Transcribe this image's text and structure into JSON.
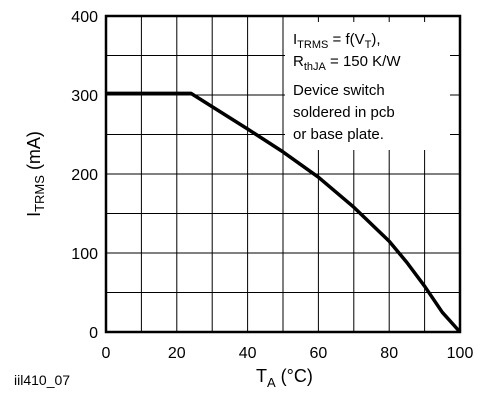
{
  "figure_id": "iil410_07",
  "chart_data": {
    "type": "line",
    "ylabel": {
      "main": "I",
      "sub": "TRMS",
      "unit": " (mA)"
    },
    "xlabel": {
      "main": "T",
      "sub": "A",
      "unit": " (°C)"
    },
    "xlim": [
      0,
      100
    ],
    "ylim": [
      0,
      400
    ],
    "x_ticks": [
      0,
      20,
      40,
      60,
      80,
      100
    ],
    "y_ticks": [
      0,
      100,
      200,
      300,
      400
    ],
    "x_grid": [
      0,
      10,
      20,
      30,
      40,
      50,
      60,
      70,
      80,
      90,
      100
    ],
    "y_grid": [
      0,
      50,
      100,
      150,
      200,
      250,
      300,
      350,
      400
    ],
    "grid": true,
    "series": [
      {
        "x": [
          0,
          24,
          40,
          50,
          60,
          70,
          80,
          85,
          90,
          95,
          100
        ],
        "y": [
          302,
          302,
          257,
          228,
          196,
          158,
          115,
          88,
          58,
          25,
          0
        ]
      }
    ],
    "annotation": {
      "line1": {
        "a": "I",
        "a_sub": "TRMS",
        "b": " = f(V",
        "b_sub": "T",
        "c": "),"
      },
      "line2": {
        "a": "R",
        "a_sub": "thJA",
        "b": " = 150 K/W"
      },
      "line3": "Device switch",
      "line4": "soldered in pcb",
      "line5": "or base plate."
    }
  }
}
